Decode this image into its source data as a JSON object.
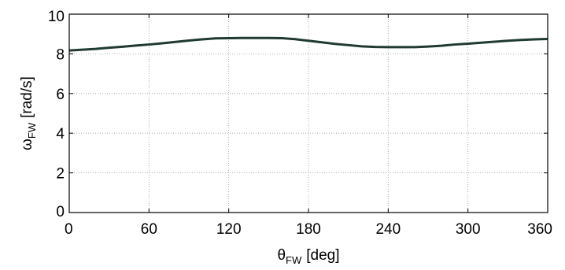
{
  "chart_data": {
    "type": "line",
    "title": "",
    "xlabel": {
      "symbol": "θ",
      "subscript": "FW",
      "unit": "[deg]"
    },
    "ylabel": {
      "symbol": "ω",
      "subscript": "FW",
      "unit": "[rad/s]"
    },
    "xlim": [
      0,
      360
    ],
    "ylim": [
      0,
      10
    ],
    "xticks": [
      0,
      60,
      120,
      180,
      240,
      300,
      360
    ],
    "yticks": [
      0,
      2,
      4,
      6,
      8,
      10
    ],
    "grid": true,
    "legend": "none",
    "series": [
      {
        "color": "#1f3b30",
        "x": [
          0,
          10,
          20,
          30,
          40,
          50,
          60,
          70,
          80,
          90,
          100,
          110,
          120,
          130,
          140,
          150,
          160,
          170,
          180,
          190,
          200,
          210,
          220,
          230,
          240,
          250,
          260,
          270,
          280,
          290,
          300,
          310,
          320,
          330,
          340,
          350,
          360
        ],
        "y": [
          8.17,
          8.21,
          8.25,
          8.31,
          8.36,
          8.42,
          8.47,
          8.53,
          8.6,
          8.67,
          8.73,
          8.78,
          8.79,
          8.8,
          8.8,
          8.8,
          8.79,
          8.74,
          8.66,
          8.58,
          8.5,
          8.44,
          8.38,
          8.35,
          8.34,
          8.34,
          8.34,
          8.37,
          8.41,
          8.47,
          8.51,
          8.56,
          8.61,
          8.66,
          8.7,
          8.73,
          8.75
        ]
      }
    ]
  }
}
